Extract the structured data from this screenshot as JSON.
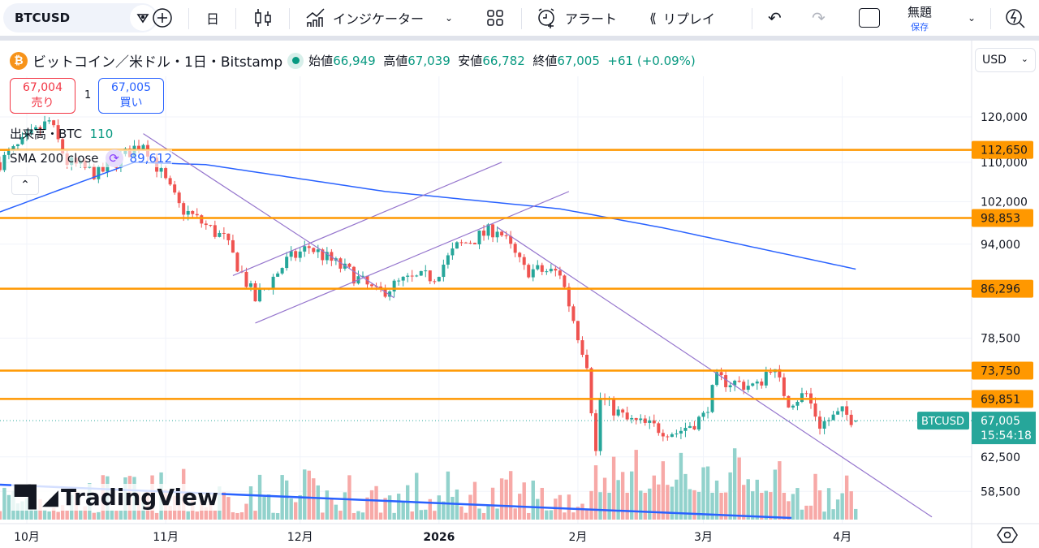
{
  "toolbar": {
    "symbol": "BTCUSD",
    "interval": "日",
    "indicators": "インジケーター",
    "alert": "アラート",
    "replay": "リプレイ",
    "layout_name": "無題",
    "save": "保存"
  },
  "legend": {
    "title": "ビットコイン／米ドル・1日・Bitstamp",
    "open_label": "始値",
    "open": "66,949",
    "high_label": "高値",
    "high": "67,039",
    "low_label": "安値",
    "low": "66,782",
    "close_label": "終値",
    "close": "67,005",
    "change": "+61 (+0.09%)"
  },
  "trade": {
    "sell_price": "67,004",
    "sell_label": "売り",
    "qty": "1",
    "buy_price": "67,005",
    "buy_label": "買い"
  },
  "volume_legend": {
    "label": "出来高・BTC",
    "value": "110"
  },
  "sma_legend": {
    "label": "SMA 200 close",
    "value": "89,612"
  },
  "currency": "USD",
  "watermark": "TradingView",
  "current": {
    "symbol": "BTCUSD",
    "price": "67,005",
    "countdown": "15:54:18"
  },
  "colors": {
    "up": "#26a69a",
    "down": "#ef5350",
    "level": "#ff9800",
    "sma": "#2962ff",
    "trend": "#9575cd"
  },
  "chart_data": {
    "type": "candlestick",
    "scale": "log",
    "price_ticks": [
      "120,000",
      "110,000",
      "102,000",
      "94,000",
      "78,500",
      "62,500",
      "58,500"
    ],
    "price_tick_values": [
      120000,
      110000,
      102000,
      94000,
      78500,
      62500,
      58500
    ],
    "time_labels": [
      {
        "date": "2025-10-01",
        "label": "10月"
      },
      {
        "date": "2025-11-01",
        "label": "11月"
      },
      {
        "date": "2025-12-01",
        "label": "12月"
      },
      {
        "date": "2026-01-01",
        "label": "2026"
      },
      {
        "date": "2026-02-01",
        "label": "2月"
      },
      {
        "date": "2026-03-01",
        "label": "3月"
      },
      {
        "date": "2026-04-01",
        "label": "4月"
      }
    ],
    "approx_close_path": [
      [
        "2025-09-25",
        110000
      ],
      [
        "2025-10-06",
        119000
      ],
      [
        "2025-10-10",
        110000
      ],
      [
        "2025-10-17",
        107500
      ],
      [
        "2025-10-27",
        114500
      ],
      [
        "2025-11-04",
        101000
      ],
      [
        "2025-11-14",
        95000
      ],
      [
        "2025-11-21",
        84500
      ],
      [
        "2025-11-28",
        91000
      ],
      [
        "2025-12-03",
        93500
      ],
      [
        "2025-12-13",
        88500
      ],
      [
        "2025-12-18",
        85500
      ],
      [
        "2025-12-24",
        87500
      ],
      [
        "2025-12-31",
        88500
      ],
      [
        "2026-01-05",
        93500
      ],
      [
        "2026-01-14",
        97000
      ],
      [
        "2026-01-20",
        89500
      ],
      [
        "2026-01-28",
        89000
      ],
      [
        "2026-02-01",
        79000
      ],
      [
        "2026-02-03",
        75000
      ],
      [
        "2026-02-05",
        63000
      ],
      [
        "2026-02-06",
        70000
      ],
      [
        "2026-02-12",
        67000
      ],
      [
        "2026-02-23",
        65500
      ],
      [
        "2026-03-01",
        67500
      ],
      [
        "2026-03-04",
        72500
      ],
      [
        "2026-03-13",
        71500
      ],
      [
        "2026-03-16",
        74500
      ],
      [
        "2026-03-20",
        69500
      ],
      [
        "2026-03-24",
        70500
      ],
      [
        "2026-03-27",
        66500
      ],
      [
        "2026-04-01",
        68000
      ],
      [
        "2026-04-04",
        67005
      ]
    ],
    "sma200": [
      [
        "2025-09-25",
        100000
      ],
      [
        "2025-10-25",
        110000
      ],
      [
        "2025-11-10",
        109500
      ],
      [
        "2025-12-20",
        104000
      ],
      [
        "2026-01-28",
        100600
      ],
      [
        "2026-02-20",
        97000
      ],
      [
        "2026-04-04",
        89612
      ]
    ],
    "levels": [
      {
        "value": 112650,
        "label": "112,650"
      },
      {
        "value": 98853,
        "label": "98,853"
      },
      {
        "value": 86296,
        "label": "86,296"
      },
      {
        "value": 73750,
        "label": "73,750"
      },
      {
        "value": 69851,
        "label": "69,851"
      }
    ],
    "trendlines": [
      [
        [
          "2025-10-27",
          116200
        ],
        [
          "2025-12-22",
          84800
        ]
      ],
      [
        [
          "2025-11-16",
          88500
        ],
        [
          "2026-01-15",
          110000
        ]
      ],
      [
        [
          "2025-11-21",
          80800
        ],
        [
          "2026-01-30",
          104000
        ]
      ],
      [
        [
          "2026-01-14",
          97100
        ],
        [
          "2026-04-21",
          55700
        ]
      ]
    ],
    "last_candle": {
      "open": 66949,
      "high": 67039,
      "low": 66782,
      "close": 67005
    }
  }
}
